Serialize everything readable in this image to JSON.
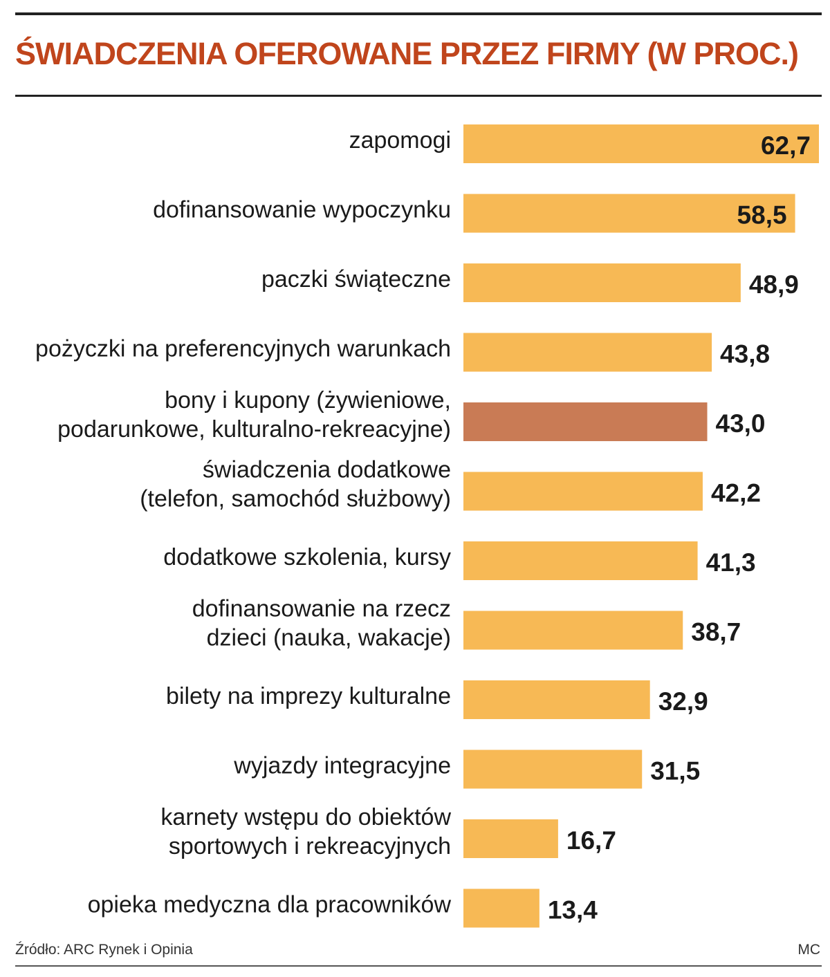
{
  "title": "ŚWIADCZENIA OFEROWANE PRZEZ FIRMY (W PROC.)",
  "source": "Źródło: ARC Rynek i Opinia",
  "credit": "MC",
  "colors": {
    "bar": "#f7b955",
    "highlight": "#c97b55",
    "title": "#c0451c"
  },
  "chart_data": {
    "type": "bar",
    "orientation": "horizontal",
    "title": "ŚWIADCZENIA OFEROWANE PRZEZ FIRMY (W PROC.)",
    "categories": [
      [
        "zapomogi"
      ],
      [
        "dofinansowanie wypoczynku"
      ],
      [
        "paczki świąteczne"
      ],
      [
        "pożyczki na preferencyjnych warunkach"
      ],
      [
        "bony i kupony (żywieniowe,",
        "podarunkowe, kulturalno-rekreacyjne)"
      ],
      [
        "świadczenia dodatkowe",
        "(telefon, samochód służbowy)"
      ],
      [
        "dodatkowe szkolenia, kursy"
      ],
      [
        "dofinansowanie na rzecz",
        "dzieci (nauka, wakacje)"
      ],
      [
        "bilety na imprezy kulturalne"
      ],
      [
        "wyjazdy integracyjne"
      ],
      [
        "karnety wstępu do obiektów",
        "sportowych i rekreacyjnych"
      ],
      [
        "opieka medyczna dla pracowników"
      ]
    ],
    "values": [
      62.7,
      58.5,
      48.9,
      43.8,
      43.0,
      42.2,
      41.3,
      38.7,
      32.9,
      31.5,
      16.7,
      13.4
    ],
    "value_labels": [
      "62,7",
      "58,5",
      "48,9",
      "43,8",
      "43,0",
      "42,2",
      "41,3",
      "38,7",
      "32,9",
      "31,5",
      "16,7",
      "13,4"
    ],
    "highlight_index": 4,
    "xlim": [
      0,
      62.7
    ],
    "grid": false,
    "legend": "none"
  }
}
